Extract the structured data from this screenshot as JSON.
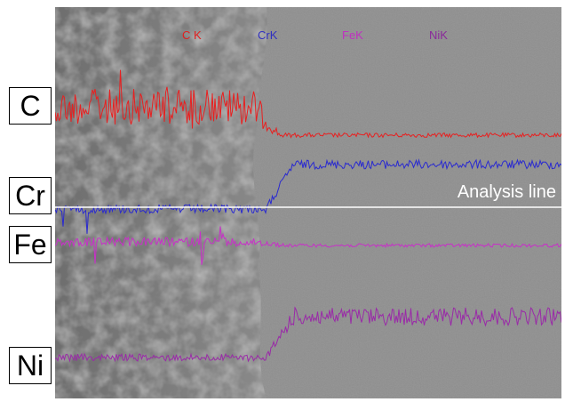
{
  "element_labels": [
    "C",
    "Cr",
    "Fe",
    "Ni"
  ],
  "legend": [
    "C K",
    "CrK",
    "FeK",
    "NiK"
  ],
  "annotation": "Analysis line"
}
